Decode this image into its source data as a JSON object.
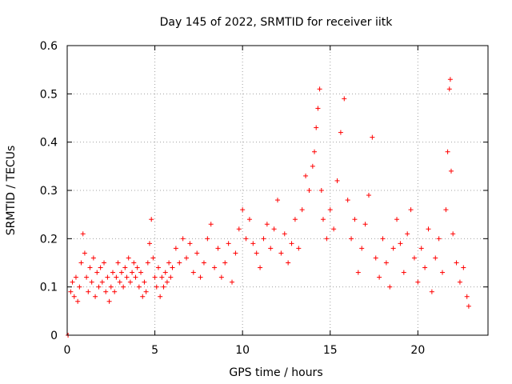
{
  "chart_data": {
    "type": "scatter",
    "title": "Day 145 of 2022, SRMTID for receiver iitk",
    "xlabel": "GPS time / hours",
    "ylabel": "SRMTID / TECUs",
    "xlim": [
      0,
      24
    ],
    "ylim": [
      0,
      0.6
    ],
    "xticks": [
      0,
      5,
      10,
      15,
      20
    ],
    "yticks": [
      0,
      0.1,
      0.2,
      0.3,
      0.4,
      0.5,
      0.6
    ],
    "xtick_labels": [
      "0",
      "5",
      "10",
      "15",
      "20"
    ],
    "ytick_labels": [
      "0",
      "0.1",
      "0.2",
      "0.3",
      "0.4",
      "0.5",
      "0.6"
    ],
    "grid": true,
    "marker": "+",
    "color": "#ff0000",
    "series": [
      {
        "name": "SRMTID",
        "points": [
          [
            0.05,
            0.0
          ],
          [
            0.2,
            0.09
          ],
          [
            0.3,
            0.11
          ],
          [
            0.4,
            0.08
          ],
          [
            0.5,
            0.12
          ],
          [
            0.6,
            0.07
          ],
          [
            0.7,
            0.1
          ],
          [
            0.8,
            0.15
          ],
          [
            0.9,
            0.21
          ],
          [
            1.0,
            0.17
          ],
          [
            1.1,
            0.12
          ],
          [
            1.2,
            0.09
          ],
          [
            1.3,
            0.14
          ],
          [
            1.4,
            0.11
          ],
          [
            1.5,
            0.16
          ],
          [
            1.6,
            0.08
          ],
          [
            1.7,
            0.13
          ],
          [
            1.8,
            0.1
          ],
          [
            1.9,
            0.14
          ],
          [
            2.0,
            0.11
          ],
          [
            2.1,
            0.15
          ],
          [
            2.2,
            0.09
          ],
          [
            2.3,
            0.12
          ],
          [
            2.4,
            0.07
          ],
          [
            2.5,
            0.1
          ],
          [
            2.6,
            0.13
          ],
          [
            2.7,
            0.09
          ],
          [
            2.8,
            0.12
          ],
          [
            2.9,
            0.15
          ],
          [
            3.0,
            0.11
          ],
          [
            3.1,
            0.13
          ],
          [
            3.2,
            0.1
          ],
          [
            3.3,
            0.14
          ],
          [
            3.4,
            0.12
          ],
          [
            3.5,
            0.16
          ],
          [
            3.6,
            0.11
          ],
          [
            3.7,
            0.13
          ],
          [
            3.8,
            0.15
          ],
          [
            3.9,
            0.12
          ],
          [
            4.0,
            0.14
          ],
          [
            4.1,
            0.1
          ],
          [
            4.2,
            0.13
          ],
          [
            4.3,
            0.08
          ],
          [
            4.4,
            0.11
          ],
          [
            4.5,
            0.09
          ],
          [
            4.6,
            0.15
          ],
          [
            4.7,
            0.19
          ],
          [
            4.8,
            0.24
          ],
          [
            4.9,
            0.16
          ],
          [
            5.0,
            0.12
          ],
          [
            5.1,
            0.1
          ],
          [
            5.2,
            0.14
          ],
          [
            5.3,
            0.08
          ],
          [
            5.4,
            0.12
          ],
          [
            5.5,
            0.1
          ],
          [
            5.6,
            0.13
          ],
          [
            5.7,
            0.11
          ],
          [
            5.8,
            0.15
          ],
          [
            5.9,
            0.12
          ],
          [
            6.0,
            0.14
          ],
          [
            6.2,
            0.18
          ],
          [
            6.4,
            0.15
          ],
          [
            6.6,
            0.2
          ],
          [
            6.8,
            0.16
          ],
          [
            7.0,
            0.19
          ],
          [
            7.2,
            0.13
          ],
          [
            7.4,
            0.17
          ],
          [
            7.6,
            0.12
          ],
          [
            7.8,
            0.15
          ],
          [
            8.0,
            0.2
          ],
          [
            8.2,
            0.23
          ],
          [
            8.4,
            0.14
          ],
          [
            8.6,
            0.18
          ],
          [
            8.8,
            0.12
          ],
          [
            9.0,
            0.15
          ],
          [
            9.2,
            0.19
          ],
          [
            9.4,
            0.11
          ],
          [
            9.6,
            0.17
          ],
          [
            9.8,
            0.22
          ],
          [
            10.0,
            0.26
          ],
          [
            10.2,
            0.2
          ],
          [
            10.4,
            0.24
          ],
          [
            10.6,
            0.19
          ],
          [
            10.8,
            0.17
          ],
          [
            11.0,
            0.14
          ],
          [
            11.2,
            0.2
          ],
          [
            11.4,
            0.23
          ],
          [
            11.6,
            0.18
          ],
          [
            11.8,
            0.22
          ],
          [
            12.0,
            0.28
          ],
          [
            12.2,
            0.17
          ],
          [
            12.4,
            0.21
          ],
          [
            12.6,
            0.15
          ],
          [
            12.8,
            0.19
          ],
          [
            13.0,
            0.24
          ],
          [
            13.2,
            0.18
          ],
          [
            13.4,
            0.26
          ],
          [
            13.6,
            0.33
          ],
          [
            13.8,
            0.3
          ],
          [
            14.0,
            0.35
          ],
          [
            14.1,
            0.38
          ],
          [
            14.2,
            0.43
          ],
          [
            14.3,
            0.47
          ],
          [
            14.4,
            0.51
          ],
          [
            14.5,
            0.3
          ],
          [
            14.6,
            0.24
          ],
          [
            14.8,
            0.2
          ],
          [
            15.0,
            0.26
          ],
          [
            15.2,
            0.22
          ],
          [
            15.4,
            0.32
          ],
          [
            15.6,
            0.42
          ],
          [
            15.8,
            0.49
          ],
          [
            16.0,
            0.28
          ],
          [
            16.2,
            0.2
          ],
          [
            16.4,
            0.24
          ],
          [
            16.6,
            0.13
          ],
          [
            16.8,
            0.18
          ],
          [
            17.0,
            0.23
          ],
          [
            17.2,
            0.29
          ],
          [
            17.4,
            0.41
          ],
          [
            17.6,
            0.16
          ],
          [
            17.8,
            0.12
          ],
          [
            18.0,
            0.2
          ],
          [
            18.2,
            0.15
          ],
          [
            18.4,
            0.1
          ],
          [
            18.6,
            0.18
          ],
          [
            18.8,
            0.24
          ],
          [
            19.0,
            0.19
          ],
          [
            19.2,
            0.13
          ],
          [
            19.4,
            0.21
          ],
          [
            19.6,
            0.26
          ],
          [
            19.8,
            0.16
          ],
          [
            20.0,
            0.11
          ],
          [
            20.2,
            0.18
          ],
          [
            20.4,
            0.14
          ],
          [
            20.6,
            0.22
          ],
          [
            20.8,
            0.09
          ],
          [
            21.0,
            0.16
          ],
          [
            21.2,
            0.2
          ],
          [
            21.4,
            0.13
          ],
          [
            21.6,
            0.26
          ],
          [
            21.7,
            0.38
          ],
          [
            21.8,
            0.51
          ],
          [
            21.85,
            0.53
          ],
          [
            21.9,
            0.34
          ],
          [
            22.0,
            0.21
          ],
          [
            22.2,
            0.15
          ],
          [
            22.4,
            0.11
          ],
          [
            22.6,
            0.14
          ],
          [
            22.8,
            0.08
          ],
          [
            22.9,
            0.06
          ]
        ]
      }
    ]
  }
}
